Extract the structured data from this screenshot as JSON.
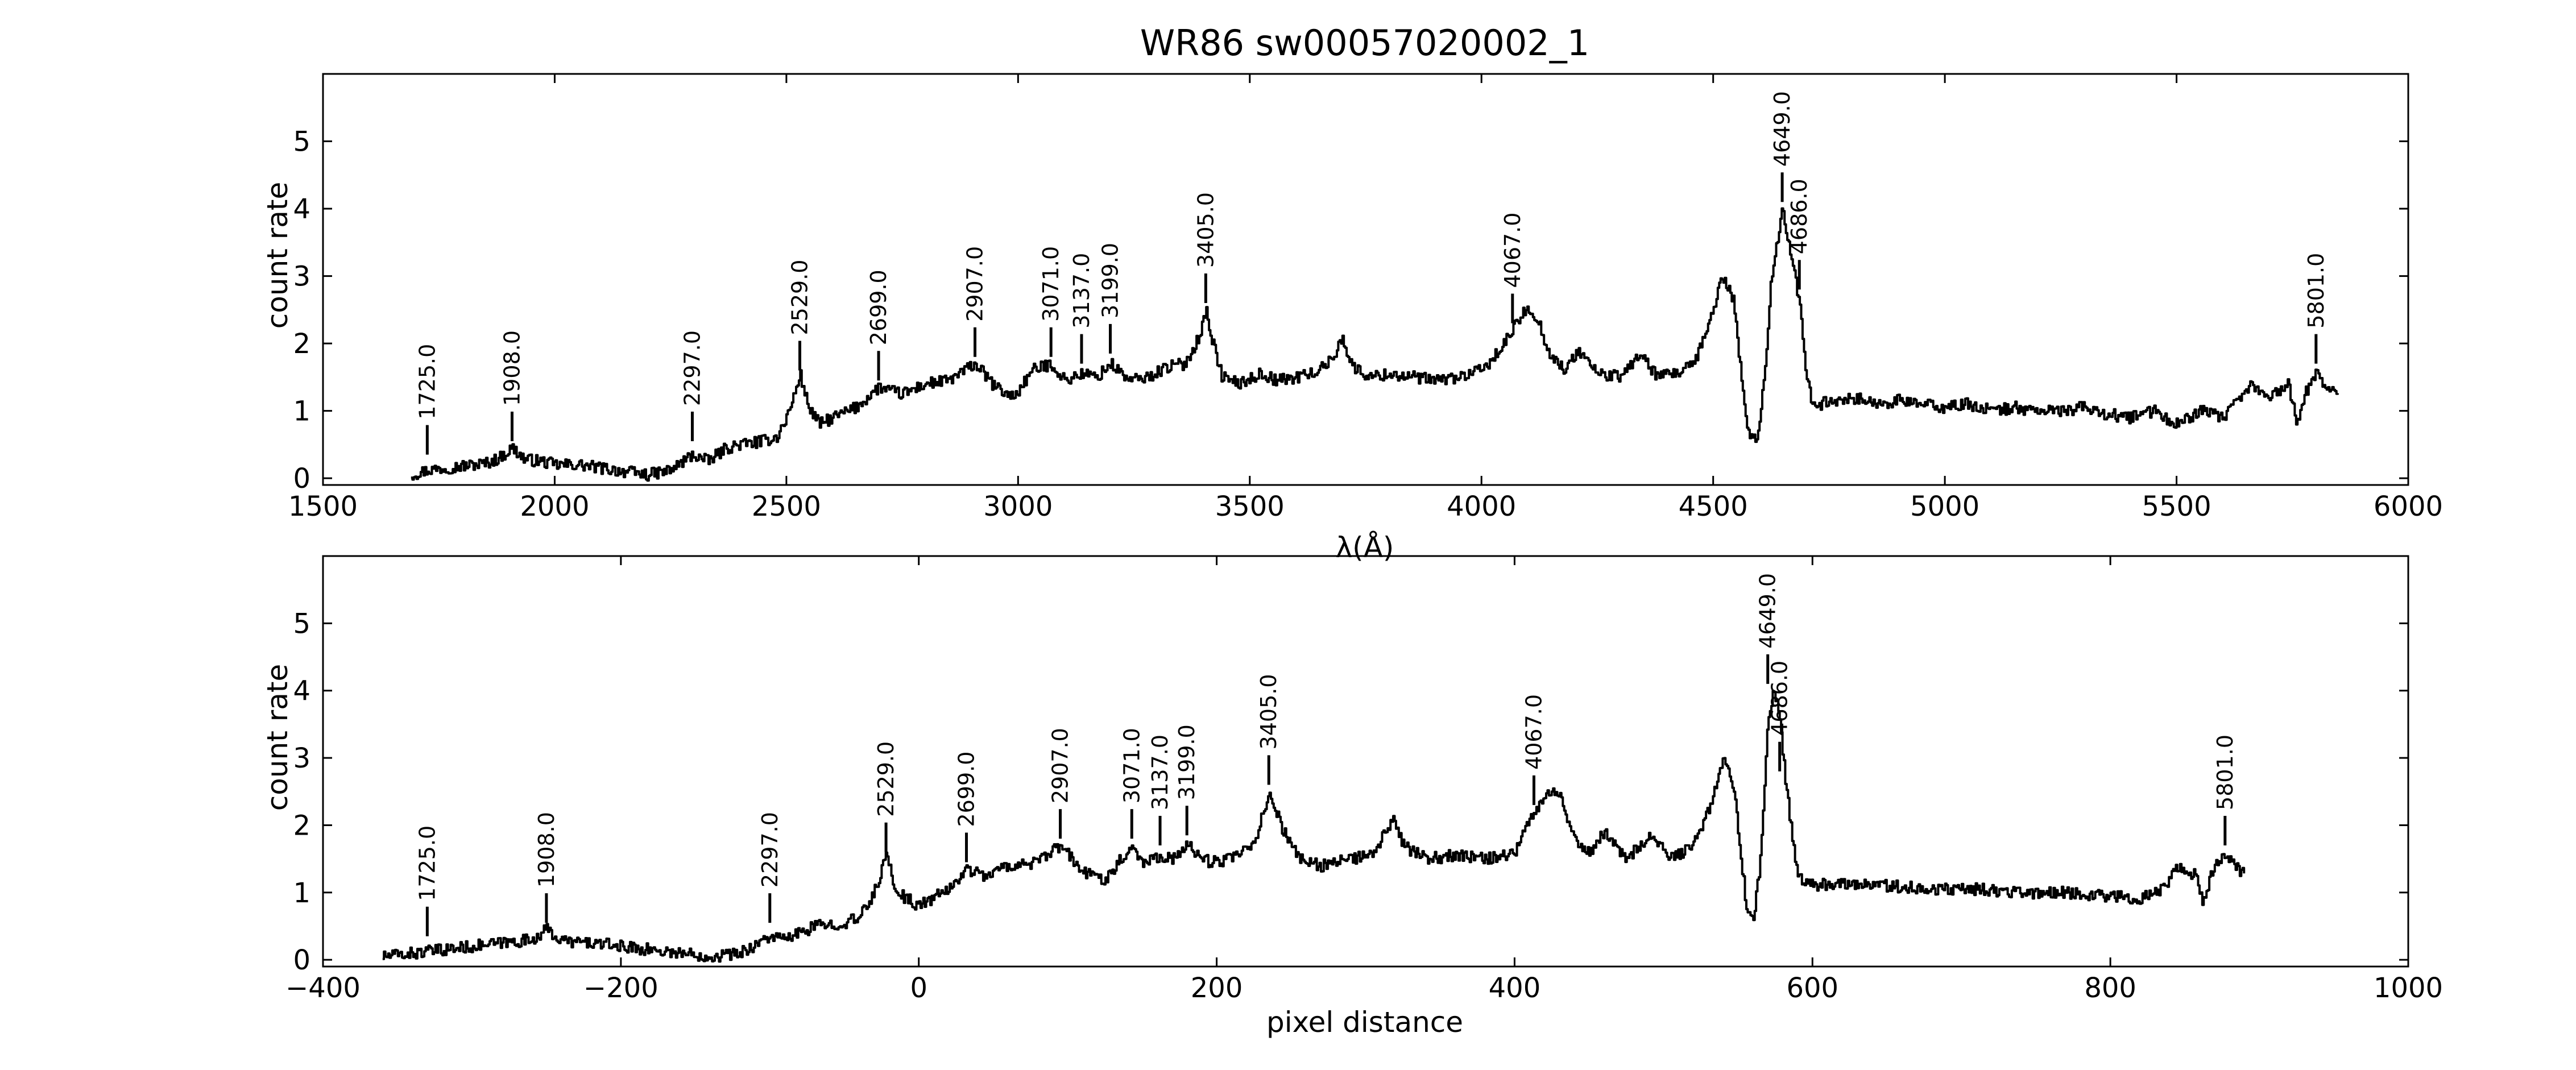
{
  "chart_data": {
    "title": "WR86  sw00057020002_1",
    "charts": [
      {
        "type": "line",
        "xlabel": "λ(Å)",
        "ylabel": "count rate",
        "xlim": [
          1500,
          6000
        ],
        "ylim": [
          -0.1,
          6.0
        ],
        "xticks": [
          "1500",
          "2000",
          "2500",
          "3000",
          "3500",
          "4000",
          "4500",
          "5000",
          "5500",
          "6000"
        ],
        "yticks": [
          "0",
          "1",
          "2",
          "3",
          "4",
          "5"
        ],
        "line_labels": [
          {
            "label": "1725.0",
            "x": 1725,
            "y": 0.35
          },
          {
            "label": "1908.0",
            "x": 1908,
            "y": 0.55
          },
          {
            "label": "2297.0",
            "x": 2297,
            "y": 0.55
          },
          {
            "label": "2529.0",
            "x": 2529,
            "y": 1.6
          },
          {
            "label": "2699.0",
            "x": 2699,
            "y": 1.45
          },
          {
            "label": "2907.0",
            "x": 2907,
            "y": 1.8
          },
          {
            "label": "3071.0",
            "x": 3071,
            "y": 1.8
          },
          {
            "label": "3137.0",
            "x": 3137,
            "y": 1.7
          },
          {
            "label": "3199.0",
            "x": 3199,
            "y": 1.85
          },
          {
            "label": "3405.0",
            "x": 3405,
            "y": 2.6
          },
          {
            "label": "4067.0",
            "x": 4067,
            "y": 2.3
          },
          {
            "label": "4649.0",
            "x": 4649,
            "y": 4.1
          },
          {
            "label": "4686.0",
            "x": 4686,
            "y": 2.8
          },
          {
            "label": "5801.0",
            "x": 5801,
            "y": 1.7
          }
        ],
        "series": [
          {
            "x": [
              1690,
              1725,
              1760,
              1800,
              1850,
              1880,
              1908,
              1935,
              1970,
              2000,
              2050,
              2100,
              2150,
              2200,
              2250,
              2297,
              2330,
              2370,
              2400,
              2450,
              2480,
              2500,
              2515,
              2529,
              2545,
              2570,
              2600,
              2650,
              2699,
              2720,
              2750,
              2800,
              2850,
              2907,
              2950,
              2990,
              3030,
              3071,
              3100,
              3137,
              3170,
              3199,
              3240,
              3280,
              3320,
              3360,
              3390,
              3405,
              3420,
              3440,
              3480,
              3520,
              3560,
              3600,
              3650,
              3680,
              3700,
              3720,
              3760,
              3800,
              3850,
              3900,
              3950,
              4000,
              4040,
              4067,
              4090,
              4100,
              4120,
              4150,
              4180,
              4210,
              4250,
              4300,
              4340,
              4380,
              4420,
              4460,
              4490,
              4520,
              4545,
              4560,
              4575,
              4590,
              4600,
              4610,
              4625,
              4640,
              4649,
              4660,
              4670,
              4686,
              4700,
              4710,
              4730,
              4760,
              4800,
              4850,
              4900,
              4950,
              5000,
              5050,
              5100,
              5150,
              5200,
              5250,
              5300,
              5350,
              5400,
              5450,
              5500,
              5550,
              5600,
              5640,
              5660,
              5690,
              5720,
              5740,
              5760,
              5780,
              5801,
              5820,
              5850
            ],
            "y": [
              0.05,
              0.12,
              0.15,
              0.18,
              0.22,
              0.3,
              0.45,
              0.28,
              0.25,
              0.2,
              0.2,
              0.15,
              0.1,
              0.05,
              0.12,
              0.35,
              0.25,
              0.45,
              0.5,
              0.55,
              0.62,
              0.9,
              1.2,
              1.55,
              1.1,
              0.8,
              0.9,
              1.05,
              1.35,
              1.3,
              1.25,
              1.4,
              1.45,
              1.7,
              1.35,
              1.2,
              1.6,
              1.7,
              1.45,
              1.55,
              1.5,
              1.7,
              1.45,
              1.5,
              1.65,
              1.7,
              2.1,
              2.5,
              2.0,
              1.5,
              1.4,
              1.55,
              1.45,
              1.5,
              1.6,
              1.8,
              2.1,
              1.65,
              1.5,
              1.55,
              1.5,
              1.45,
              1.5,
              1.6,
              1.9,
              2.2,
              2.45,
              2.55,
              2.35,
              1.8,
              1.6,
              1.9,
              1.55,
              1.5,
              1.85,
              1.5,
              1.55,
              1.7,
              2.3,
              3.0,
              2.6,
              1.5,
              0.7,
              0.55,
              0.8,
              1.5,
              3.0,
              3.6,
              4.0,
              3.6,
              3.2,
              2.6,
              1.5,
              1.2,
              1.1,
              1.15,
              1.2,
              1.1,
              1.15,
              1.1,
              1.05,
              1.1,
              1.0,
              1.05,
              1.0,
              1.0,
              1.05,
              0.95,
              0.9,
              1.0,
              0.8,
              1.0,
              0.9,
              1.2,
              1.4,
              1.2,
              1.3,
              1.4,
              0.8,
              1.3,
              1.6,
              1.35,
              1.3
            ]
          }
        ]
      },
      {
        "type": "line",
        "xlabel": "pixel distance",
        "ylabel": "count rate",
        "xlim": [
          -400,
          1000
        ],
        "ylim": [
          -0.1,
          6.0
        ],
        "xticks": [
          "−400",
          "−200",
          "0",
          "200",
          "400",
          "600",
          "800",
          "1000"
        ],
        "yticks": [
          "0",
          "1",
          "2",
          "3",
          "4",
          "5"
        ],
        "line_labels": [
          {
            "label": "1725.0",
            "x": -330,
            "y": 0.35
          },
          {
            "label": "1908.0",
            "x": -250,
            "y": 0.55
          },
          {
            "label": "2297.0",
            "x": -100,
            "y": 0.55
          },
          {
            "label": "2529.0",
            "x": -22,
            "y": 1.6
          },
          {
            "label": "2699.0",
            "x": 32,
            "y": 1.45
          },
          {
            "label": "2907.0",
            "x": 95,
            "y": 1.8
          },
          {
            "label": "3071.0",
            "x": 143,
            "y": 1.8
          },
          {
            "label": "3137.0",
            "x": 162,
            "y": 1.7
          },
          {
            "label": "3199.0",
            "x": 180,
            "y": 1.85
          },
          {
            "label": "3405.0",
            "x": 235,
            "y": 2.6
          },
          {
            "label": "4067.0",
            "x": 413,
            "y": 2.3
          },
          {
            "label": "4649.0",
            "x": 570,
            "y": 4.1
          },
          {
            "label": "4686.0",
            "x": 578,
            "y": 2.8
          },
          {
            "label": "5801.0",
            "x": 877,
            "y": 1.7
          }
        ],
        "series": [
          {
            "x": [
              -360,
              -330,
              -300,
              -280,
              -260,
              -250,
              -240,
              -220,
              -200,
              -180,
              -160,
              -140,
              -120,
              -100,
              -90,
              -70,
              -50,
              -40,
              -30,
              -22,
              -15,
              0,
              20,
              32,
              45,
              60,
              80,
              95,
              110,
              125,
              143,
              150,
              162,
              172,
              180,
              195,
              210,
              225,
              235,
              243,
              255,
              270,
              290,
              305,
              318,
              325,
              340,
              360,
              380,
              400,
              413,
              420,
              425,
              432,
              440,
              450,
              460,
              475,
              490,
              505,
              520,
              532,
              540,
              547,
              552,
              556,
              560,
              565,
              570,
              574,
              578,
              582,
              590,
              600,
              620,
              650,
              680,
              710,
              740,
              770,
              800,
              820,
              838,
              845,
              852,
              858,
              862,
              868,
              877,
              885,
              890
            ],
            "y": [
              0.05,
              0.12,
              0.2,
              0.25,
              0.3,
              0.45,
              0.28,
              0.25,
              0.2,
              0.15,
              0.1,
              0.05,
              0.1,
              0.35,
              0.3,
              0.5,
              0.55,
              0.62,
              1.0,
              1.55,
              1.0,
              0.8,
              1.05,
              1.35,
              1.25,
              1.4,
              1.45,
              1.7,
              1.3,
              1.2,
              1.7,
              1.45,
              1.55,
              1.5,
              1.7,
              1.45,
              1.5,
              1.7,
              2.5,
              2.0,
              1.5,
              1.4,
              1.5,
              1.55,
              2.1,
              1.7,
              1.5,
              1.55,
              1.5,
              1.6,
              2.2,
              2.45,
              2.55,
              2.35,
              1.8,
              1.6,
              1.9,
              1.5,
              1.85,
              1.5,
              1.7,
              2.3,
              3.0,
              2.6,
              1.5,
              0.7,
              0.55,
              1.5,
              3.6,
              4.0,
              3.6,
              2.6,
              1.2,
              1.1,
              1.15,
              1.1,
              1.05,
              1.05,
              1.0,
              1.0,
              0.95,
              0.9,
              1.1,
              1.4,
              1.2,
              1.3,
              0.8,
              1.3,
              1.6,
              1.35,
              1.3
            ]
          }
        ]
      }
    ]
  }
}
